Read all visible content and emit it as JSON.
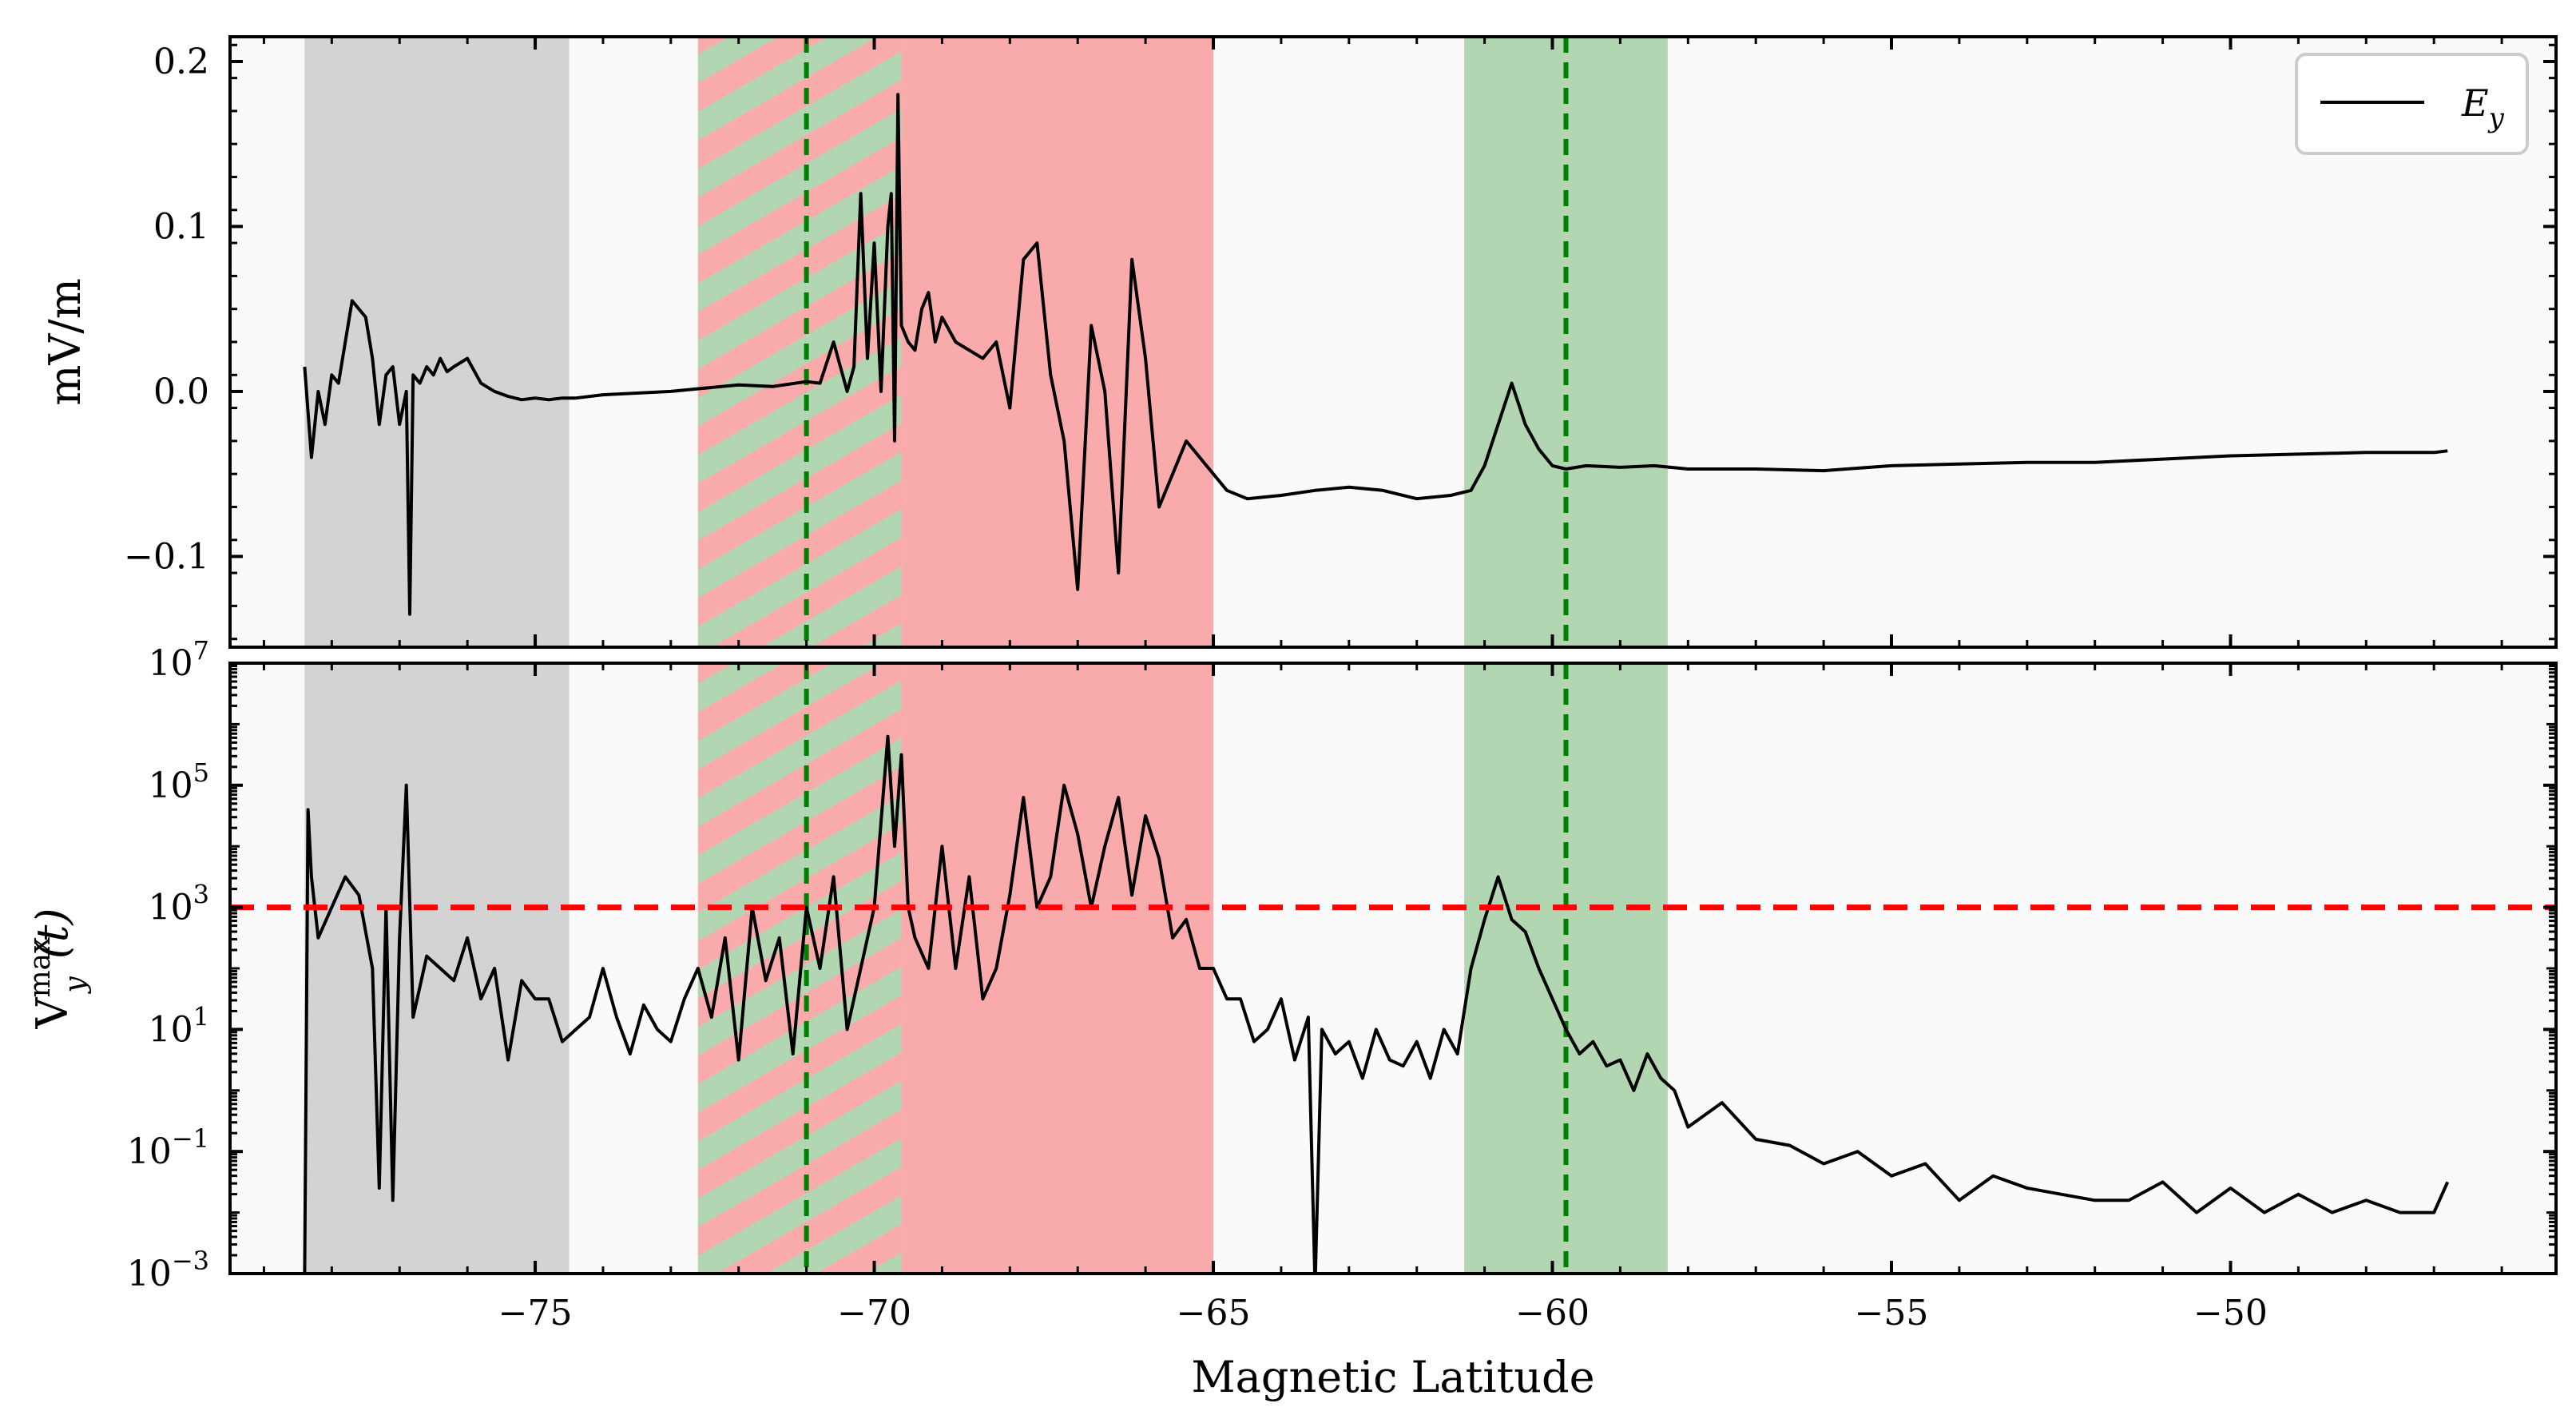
{
  "chart_data": [
    {
      "type": "line",
      "panel": "top",
      "ylabel": "mV/m",
      "xlabel": "",
      "xlim": [
        -79.5,
        -45.2
      ],
      "ylim": [
        -0.155,
        0.215
      ],
      "yticks": [
        0.2,
        0.1,
        0.0,
        -0.1
      ],
      "ytick_labels": [
        "0.2",
        "0.1",
        "0.0",
        "−0.1"
      ],
      "legend": {
        "label_main": "E",
        "label_sub": "y",
        "position": "top-right"
      },
      "regions": [
        {
          "kind": "gray",
          "x0": -78.4,
          "x1": -74.5,
          "color": "#d3d3d3"
        },
        {
          "kind": "hatched-red-green",
          "x0": -72.6,
          "x1": -69.6,
          "colors": [
            "#f9abab",
            "#b1d6b1"
          ]
        },
        {
          "kind": "red",
          "x0": -69.6,
          "x1": -65.0,
          "color": "#f9abab"
        },
        {
          "kind": "green",
          "x0": -61.3,
          "x1": -58.3,
          "color": "#b1d6b1"
        }
      ],
      "vlines": [
        {
          "x": -71.0,
          "color": "#008000",
          "style": "dashed"
        },
        {
          "x": -59.8,
          "color": "#008000",
          "style": "dashed"
        }
      ],
      "series": [
        {
          "name": "Ey",
          "color": "#000000",
          "x": [
            -78.4,
            -78.3,
            -78.2,
            -78.1,
            -78.0,
            -77.9,
            -77.8,
            -77.7,
            -77.6,
            -77.5,
            -77.4,
            -77.3,
            -77.2,
            -77.1,
            -77.0,
            -76.9,
            -76.85,
            -76.8,
            -76.7,
            -76.6,
            -76.5,
            -76.4,
            -76.3,
            -76.2,
            -76.0,
            -75.8,
            -75.6,
            -75.4,
            -75.2,
            -75.0,
            -74.8,
            -74.6,
            -74.4,
            -74.0,
            -73.5,
            -73.0,
            -72.5,
            -72.0,
            -71.5,
            -71.0,
            -70.8,
            -70.6,
            -70.4,
            -70.3,
            -70.2,
            -70.1,
            -70.0,
            -69.9,
            -69.8,
            -69.75,
            -69.7,
            -69.65,
            -69.6,
            -69.5,
            -69.4,
            -69.3,
            -69.2,
            -69.1,
            -69.0,
            -68.8,
            -68.6,
            -68.4,
            -68.2,
            -68.0,
            -67.8,
            -67.6,
            -67.4,
            -67.2,
            -67.0,
            -66.8,
            -66.6,
            -66.4,
            -66.2,
            -66.0,
            -65.8,
            -65.6,
            -65.4,
            -65.2,
            -65.0,
            -64.8,
            -64.5,
            -64.0,
            -63.5,
            -63.0,
            -62.5,
            -62.0,
            -61.5,
            -61.2,
            -61.0,
            -60.8,
            -60.6,
            -60.4,
            -60.2,
            -60.0,
            -59.8,
            -59.5,
            -59.0,
            -58.5,
            -58.0,
            -57.0,
            -56.0,
            -55.0,
            -54.0,
            -53.0,
            -52.0,
            -51.0,
            -50.0,
            -49.0,
            -48.0,
            -47.0,
            -46.8
          ],
          "y": [
            0.015,
            -0.04,
            0.0,
            -0.02,
            0.01,
            0.005,
            0.03,
            0.055,
            0.05,
            0.045,
            0.02,
            -0.02,
            0.01,
            0.015,
            -0.02,
            0.0,
            -0.135,
            0.01,
            0.005,
            0.015,
            0.01,
            0.02,
            0.012,
            0.015,
            0.02,
            0.005,
            0.0,
            -0.003,
            -0.005,
            -0.004,
            -0.005,
            -0.004,
            -0.004,
            -0.002,
            -0.001,
            0.0,
            0.002,
            0.004,
            0.003,
            0.006,
            0.005,
            0.03,
            0.0,
            0.015,
            0.12,
            0.02,
            0.09,
            0.0,
            0.1,
            0.12,
            -0.03,
            0.18,
            0.04,
            0.03,
            0.025,
            0.05,
            0.06,
            0.03,
            0.045,
            0.03,
            0.025,
            0.02,
            0.03,
            -0.01,
            0.08,
            0.09,
            0.01,
            -0.03,
            -0.12,
            0.04,
            0.0,
            -0.11,
            0.08,
            0.02,
            -0.07,
            -0.05,
            -0.03,
            -0.04,
            -0.05,
            -0.06,
            -0.065,
            -0.063,
            -0.06,
            -0.058,
            -0.06,
            -0.065,
            -0.063,
            -0.06,
            -0.045,
            -0.02,
            0.005,
            -0.02,
            -0.035,
            -0.045,
            -0.047,
            -0.045,
            -0.046,
            -0.045,
            -0.047,
            -0.047,
            -0.048,
            -0.045,
            -0.044,
            -0.043,
            -0.043,
            -0.041,
            -0.039,
            -0.038,
            -0.037,
            -0.037,
            -0.036
          ]
        }
      ]
    },
    {
      "type": "line",
      "panel": "bottom",
      "yscale": "log",
      "ylabel_main": "V",
      "ylabel_sub": "y",
      "ylabel_sup": "max",
      "ylabel_suffix": "(t)",
      "xlabel": "Magnetic Latitude",
      "xlim": [
        -79.5,
        -45.2
      ],
      "ylim_exp": [
        -3,
        7
      ],
      "yticks_exp": [
        7,
        5,
        3,
        1,
        -1,
        -3
      ],
      "ytick_base": "10",
      "ytick_sups": [
        "7",
        "5",
        "3",
        "1",
        "−1",
        "−3"
      ],
      "xticks": [
        -75,
        -70,
        -65,
        -60,
        -55,
        -50
      ],
      "xtick_labels": [
        "−75",
        "−70",
        "−65",
        "−60",
        "−55",
        "−50"
      ],
      "hline": {
        "y": 1000,
        "color": "#ff0000",
        "style": "dashed"
      },
      "regions": [
        {
          "kind": "gray",
          "x0": -78.4,
          "x1": -74.5,
          "color": "#d3d3d3"
        },
        {
          "kind": "hatched-red-green",
          "x0": -72.6,
          "x1": -69.6,
          "colors": [
            "#f9abab",
            "#b1d6b1"
          ]
        },
        {
          "kind": "red",
          "x0": -69.6,
          "x1": -65.0,
          "color": "#f9abab"
        },
        {
          "kind": "green",
          "x0": -61.3,
          "x1": -58.3,
          "color": "#b1d6b1"
        }
      ],
      "vlines": [
        {
          "x": -71.0,
          "color": "#008000",
          "style": "dashed"
        },
        {
          "x": -59.8,
          "color": "#008000",
          "style": "dashed"
        }
      ],
      "series": [
        {
          "name": "Vy_max",
          "color": "#000000",
          "x": [
            -78.4,
            -78.35,
            -78.3,
            -78.2,
            -78.0,
            -77.8,
            -77.6,
            -77.4,
            -77.3,
            -77.2,
            -77.1,
            -77.0,
            -76.9,
            -76.8,
            -76.6,
            -76.4,
            -76.2,
            -76.0,
            -75.8,
            -75.6,
            -75.4,
            -75.2,
            -75.0,
            -74.8,
            -74.6,
            -74.4,
            -74.2,
            -74.0,
            -73.8,
            -73.6,
            -73.4,
            -73.2,
            -73.0,
            -72.8,
            -72.6,
            -72.4,
            -72.2,
            -72.0,
            -71.8,
            -71.6,
            -71.4,
            -71.2,
            -71.0,
            -70.8,
            -70.6,
            -70.4,
            -70.2,
            -70.0,
            -69.8,
            -69.7,
            -69.6,
            -69.5,
            -69.4,
            -69.2,
            -69.0,
            -68.8,
            -68.6,
            -68.4,
            -68.2,
            -68.0,
            -67.8,
            -67.6,
            -67.4,
            -67.2,
            -67.0,
            -66.8,
            -66.6,
            -66.4,
            -66.2,
            -66.0,
            -65.8,
            -65.6,
            -65.4,
            -65.2,
            -65.0,
            -64.8,
            -64.6,
            -64.4,
            -64.2,
            -64.0,
            -63.8,
            -63.6,
            -63.5,
            -63.4,
            -63.2,
            -63.0,
            -62.8,
            -62.6,
            -62.4,
            -62.2,
            -62.0,
            -61.8,
            -61.6,
            -61.4,
            -61.2,
            -61.0,
            -60.8,
            -60.6,
            -60.4,
            -60.2,
            -60.0,
            -59.8,
            -59.6,
            -59.4,
            -59.2,
            -59.0,
            -58.8,
            -58.6,
            -58.4,
            -58.2,
            -58.0,
            -57.5,
            -57.0,
            -56.5,
            -56.0,
            -55.5,
            -55.0,
            -54.5,
            -54.0,
            -53.5,
            -53.0,
            -52.5,
            -52.0,
            -51.5,
            -51.0,
            -50.5,
            -50.0,
            -49.5,
            -49.0,
            -48.5,
            -48.0,
            -47.5,
            -47.0,
            -46.8
          ],
          "y": [
            -3,
            4.6,
            3.5,
            2.5,
            3.0,
            3.5,
            3.2,
            2.0,
            -1.6,
            3.0,
            -1.8,
            2.5,
            5.0,
            1.2,
            2.2,
            2.0,
            1.8,
            2.5,
            1.5,
            2.0,
            0.5,
            1.8,
            1.5,
            1.5,
            0.8,
            1.0,
            1.2,
            2.0,
            1.2,
            0.6,
            1.4,
            1.0,
            0.8,
            1.5,
            2.0,
            1.2,
            2.5,
            0.5,
            3.0,
            1.8,
            2.5,
            0.6,
            3.0,
            2.0,
            3.5,
            1.0,
            2.0,
            3.0,
            5.8,
            4.0,
            5.5,
            3.0,
            2.5,
            2.0,
            4.0,
            2.0,
            3.5,
            1.5,
            2.0,
            3.2,
            4.8,
            3.0,
            3.5,
            5.0,
            4.2,
            3.0,
            4.0,
            4.8,
            3.2,
            4.5,
            3.8,
            2.5,
            2.8,
            2.0,
            2.0,
            1.5,
            1.5,
            0.8,
            1.0,
            1.5,
            0.5,
            1.2,
            -3.2,
            1.0,
            0.6,
            0.8,
            0.2,
            1.0,
            0.5,
            0.4,
            0.8,
            0.2,
            1.0,
            0.6,
            2.0,
            2.8,
            3.5,
            2.8,
            2.6,
            2.0,
            1.5,
            1.0,
            0.6,
            0.8,
            0.4,
            0.5,
            0.0,
            0.6,
            0.2,
            0.0,
            -0.6,
            -0.2,
            -0.8,
            -0.9,
            -1.2,
            -1.0,
            -1.4,
            -1.2,
            -1.8,
            -1.4,
            -1.6,
            -1.7,
            -1.8,
            -1.8,
            -1.5,
            -2.0,
            -1.6,
            -2.0,
            -1.7,
            -2.0,
            -1.8,
            -2.0,
            -2.0,
            -1.5
          ]
        }
      ]
    }
  ]
}
